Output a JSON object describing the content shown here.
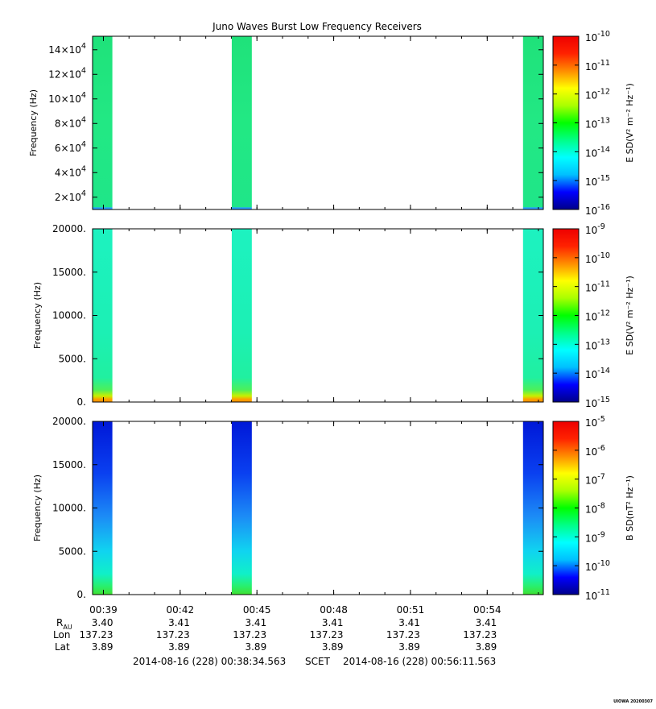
{
  "title": "Juno Waves Burst Low Frequency Receivers",
  "chart_data": [
    {
      "type": "heatmap",
      "ylabel": "Frequency (Hz)",
      "yticks": [
        {
          "value": 20000,
          "label": "2×10",
          "exp": "4"
        },
        {
          "value": 40000,
          "label": "4×10",
          "exp": "4"
        },
        {
          "value": 60000,
          "label": "6×10",
          "exp": "4"
        },
        {
          "value": 80000,
          "label": "8×10",
          "exp": "4"
        },
        {
          "value": 100000,
          "label": "10×10",
          "exp": "4"
        },
        {
          "value": 120000,
          "label": "12×10",
          "exp": "4"
        },
        {
          "value": 140000,
          "label": "14×10",
          "exp": "4"
        }
      ],
      "ylim": [
        10000,
        151000
      ],
      "colorbar_label": "E SD(V² m⁻² Hz⁻¹)",
      "colorbar_ticks": [
        {
          "label": "10",
          "exp": "-10"
        },
        {
          "label": "10",
          "exp": "-11"
        },
        {
          "label": "10",
          "exp": "-12"
        },
        {
          "label": "10",
          "exp": "-13"
        },
        {
          "label": "10",
          "exp": "-14"
        },
        {
          "label": "10",
          "exp": "-15"
        },
        {
          "label": "10",
          "exp": "-16"
        }
      ],
      "bursts": [
        {
          "start": "00:38:34",
          "end": "00:39:21"
        },
        {
          "start": "00:44:01",
          "end": "00:44:48"
        },
        {
          "start": "00:55:24",
          "end": "00:56:11"
        }
      ],
      "intensity": "~1e-13 uniform across band"
    },
    {
      "type": "heatmap",
      "ylabel": "Frequency (Hz)",
      "yticks": [
        {
          "value": 0,
          "label": "0."
        },
        {
          "value": 5000,
          "label": "5000."
        },
        {
          "value": 10000,
          "label": "10000."
        },
        {
          "value": 15000,
          "label": "15000."
        },
        {
          "value": 20000,
          "label": "20000."
        }
      ],
      "ylim": [
        0,
        20000
      ],
      "colorbar_label": "E SD(V² m⁻² Hz⁻¹)",
      "colorbar_ticks": [
        {
          "label": "10",
          "exp": "-9"
        },
        {
          "label": "10",
          "exp": "-10"
        },
        {
          "label": "10",
          "exp": "-11"
        },
        {
          "label": "10",
          "exp": "-12"
        },
        {
          "label": "10",
          "exp": "-13"
        },
        {
          "label": "10",
          "exp": "-14"
        },
        {
          "label": "10",
          "exp": "-15"
        }
      ],
      "bursts": [
        {
          "start": "00:38:34",
          "end": "00:39:21"
        },
        {
          "start": "00:44:01",
          "end": "00:44:48"
        },
        {
          "start": "00:55:24",
          "end": "00:56:11"
        }
      ],
      "intensity": "~1e-13 broadband, enhanced to ~1e-11 below ~500 Hz"
    },
    {
      "type": "heatmap",
      "ylabel": "Frequency (Hz)",
      "yticks": [
        {
          "value": 0,
          "label": "0."
        },
        {
          "value": 5000,
          "label": "5000."
        },
        {
          "value": 10000,
          "label": "10000."
        },
        {
          "value": 15000,
          "label": "15000."
        },
        {
          "value": 20000,
          "label": "20000."
        }
      ],
      "ylim": [
        0,
        20000
      ],
      "colorbar_label": "B SD(nT² Hz⁻¹)",
      "colorbar_ticks": [
        {
          "label": "10",
          "exp": "-5"
        },
        {
          "label": "10",
          "exp": "-6"
        },
        {
          "label": "10",
          "exp": "-7"
        },
        {
          "label": "10",
          "exp": "-8"
        },
        {
          "label": "10",
          "exp": "-9"
        },
        {
          "label": "10",
          "exp": "-10"
        },
        {
          "label": "10",
          "exp": "-11"
        }
      ],
      "bursts": [
        {
          "start": "00:38:34",
          "end": "00:39:21"
        },
        {
          "start": "00:44:01",
          "end": "00:44:48"
        },
        {
          "start": "00:55:24",
          "end": "00:56:11"
        }
      ],
      "intensity": "~1e-10 at high freq, rising to ~1e-8 at low freq"
    }
  ],
  "x_axis": {
    "tick_times": [
      "00:39",
      "00:42",
      "00:45",
      "00:48",
      "00:51",
      "00:54"
    ],
    "tick_minutes": [
      39,
      42,
      45,
      48,
      51,
      54
    ],
    "xlim_minutes": [
      38.5761,
      56.1927
    ],
    "ephemeris": {
      "labels": {
        "r": "R",
        "r_sub": "AU",
        "lon": "Lon",
        "lat": "Lat"
      },
      "r_au": [
        "3.40",
        "3.41",
        "3.41",
        "3.41",
        "3.41",
        "3.41"
      ],
      "lon": [
        "137.23",
        "137.23",
        "137.23",
        "137.23",
        "137.23",
        "137.23"
      ],
      "lat": [
        "3.89",
        "3.89",
        "3.89",
        "3.89",
        "3.89",
        "3.89"
      ]
    },
    "range_text": {
      "start": "2014-08-16 (228) 00:38:34.563",
      "scet": "SCET",
      "end": "2014-08-16 (228) 00:56:11.563"
    }
  },
  "footer_stamp": "UIOWA 20200307",
  "colors": {
    "colorbar_stops": [
      "#00008b",
      "#0000ff",
      "#00bfff",
      "#00ffff",
      "#00ff88",
      "#00ff00",
      "#aaff00",
      "#ffff00",
      "#ff8c00",
      "#ff2200",
      "#ee0000"
    ]
  }
}
